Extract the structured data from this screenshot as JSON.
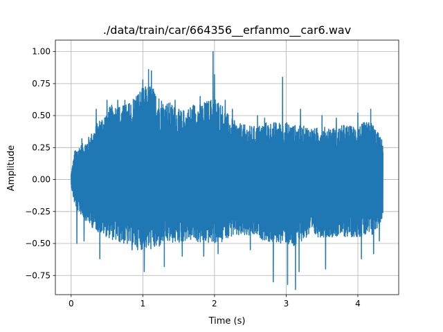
{
  "chart_data": {
    "type": "line",
    "title": "./data/train/car/664356__erfanmo__car6.wav",
    "xlabel": "Time (s)",
    "ylabel": "Amplitude",
    "xlim": [
      -0.22,
      4.57
    ],
    "ylim": [
      -0.9,
      1.09
    ],
    "xticks": [
      0,
      1,
      2,
      3,
      4
    ],
    "xtick_labels": [
      "0",
      "1",
      "2",
      "3",
      "4"
    ],
    "yticks": [
      -0.75,
      -0.5,
      -0.25,
      0.0,
      0.25,
      0.5,
      0.75,
      1.0
    ],
    "ytick_labels": [
      "−0.75",
      "−0.50",
      "−0.25",
      "0.00",
      "0.25",
      "0.50",
      "0.75",
      "1.00"
    ],
    "grid": true,
    "line_color": "#1f77b4",
    "series": [
      {
        "signal_duration_s": 4.35,
        "peak_max": 1.0,
        "peak_max_time_s": 1.98,
        "peak_min": -0.86,
        "peak_min_time_s": 3.13,
        "upper_envelope": [
          [
            0.0,
            0.05
          ],
          [
            0.05,
            0.22
          ],
          [
            0.1,
            0.26
          ],
          [
            0.2,
            0.3
          ],
          [
            0.3,
            0.38
          ],
          [
            0.4,
            0.48
          ],
          [
            0.5,
            0.55
          ],
          [
            0.6,
            0.6
          ],
          [
            0.7,
            0.58
          ],
          [
            0.8,
            0.6
          ],
          [
            0.9,
            0.68
          ],
          [
            1.0,
            0.72
          ],
          [
            1.1,
            0.75
          ],
          [
            1.2,
            0.68
          ],
          [
            1.3,
            0.62
          ],
          [
            1.4,
            0.6
          ],
          [
            1.5,
            0.55
          ],
          [
            1.6,
            0.55
          ],
          [
            1.7,
            0.6
          ],
          [
            1.8,
            0.6
          ],
          [
            1.9,
            0.62
          ],
          [
            2.0,
            0.65
          ],
          [
            2.1,
            0.6
          ],
          [
            2.2,
            0.5
          ],
          [
            2.3,
            0.45
          ],
          [
            2.4,
            0.43
          ],
          [
            2.5,
            0.42
          ],
          [
            2.6,
            0.42
          ],
          [
            2.7,
            0.45
          ],
          [
            2.8,
            0.45
          ],
          [
            2.9,
            0.45
          ],
          [
            3.0,
            0.45
          ],
          [
            3.1,
            0.43
          ],
          [
            3.2,
            0.42
          ],
          [
            3.3,
            0.42
          ],
          [
            3.4,
            0.4
          ],
          [
            3.5,
            0.42
          ],
          [
            3.6,
            0.42
          ],
          [
            3.7,
            0.4
          ],
          [
            3.8,
            0.43
          ],
          [
            3.9,
            0.42
          ],
          [
            4.0,
            0.42
          ],
          [
            4.1,
            0.45
          ],
          [
            4.2,
            0.45
          ],
          [
            4.3,
            0.35
          ],
          [
            4.35,
            0.3
          ]
        ],
        "lower_envelope": [
          [
            0.0,
            -0.05
          ],
          [
            0.05,
            -0.2
          ],
          [
            0.1,
            -0.25
          ],
          [
            0.2,
            -0.32
          ],
          [
            0.3,
            -0.38
          ],
          [
            0.4,
            -0.42
          ],
          [
            0.5,
            -0.45
          ],
          [
            0.6,
            -0.48
          ],
          [
            0.7,
            -0.5
          ],
          [
            0.8,
            -0.52
          ],
          [
            0.9,
            -0.55
          ],
          [
            1.0,
            -0.55
          ],
          [
            1.1,
            -0.55
          ],
          [
            1.2,
            -0.55
          ],
          [
            1.3,
            -0.5
          ],
          [
            1.4,
            -0.5
          ],
          [
            1.5,
            -0.5
          ],
          [
            1.6,
            -0.48
          ],
          [
            1.7,
            -0.48
          ],
          [
            1.8,
            -0.5
          ],
          [
            1.9,
            -0.5
          ],
          [
            2.0,
            -0.5
          ],
          [
            2.1,
            -0.5
          ],
          [
            2.2,
            -0.45
          ],
          [
            2.3,
            -0.45
          ],
          [
            2.4,
            -0.45
          ],
          [
            2.5,
            -0.45
          ],
          [
            2.6,
            -0.45
          ],
          [
            2.7,
            -0.48
          ],
          [
            2.8,
            -0.5
          ],
          [
            2.9,
            -0.5
          ],
          [
            3.0,
            -0.5
          ],
          [
            3.1,
            -0.55
          ],
          [
            3.2,
            -0.5
          ],
          [
            3.3,
            -0.45
          ],
          [
            3.4,
            -0.45
          ],
          [
            3.5,
            -0.45
          ],
          [
            3.6,
            -0.45
          ],
          [
            3.7,
            -0.45
          ],
          [
            3.8,
            -0.45
          ],
          [
            3.9,
            -0.45
          ],
          [
            4.0,
            -0.45
          ],
          [
            4.1,
            -0.45
          ],
          [
            4.2,
            -0.45
          ],
          [
            4.3,
            -0.35
          ],
          [
            4.35,
            -0.3
          ]
        ],
        "spikes": [
          [
            0.05,
            0.22
          ],
          [
            0.08,
            -0.5
          ],
          [
            0.15,
            0.32
          ],
          [
            0.18,
            -0.48
          ],
          [
            0.35,
            0.55
          ],
          [
            0.4,
            -0.62
          ],
          [
            0.5,
            0.62
          ],
          [
            0.65,
            0.62
          ],
          [
            0.75,
            0.62
          ],
          [
            0.85,
            -0.55
          ],
          [
            1.0,
            0.78
          ],
          [
            1.02,
            -0.72
          ],
          [
            1.08,
            0.86
          ],
          [
            1.12,
            0.85
          ],
          [
            1.18,
            0.65
          ],
          [
            1.3,
            -0.68
          ],
          [
            1.45,
            0.62
          ],
          [
            1.55,
            -0.6
          ],
          [
            1.8,
            0.65
          ],
          [
            1.85,
            -0.6
          ],
          [
            1.98,
            1.0
          ],
          [
            2.0,
            0.82
          ],
          [
            2.05,
            -0.58
          ],
          [
            2.15,
            0.62
          ],
          [
            2.25,
            0.55
          ],
          [
            2.5,
            -0.55
          ],
          [
            2.6,
            0.5
          ],
          [
            2.7,
            0.48
          ],
          [
            2.82,
            -0.8
          ],
          [
            2.95,
            0.8
          ],
          [
            3.02,
            -0.82
          ],
          [
            3.13,
            -0.86
          ],
          [
            3.18,
            -0.72
          ],
          [
            3.2,
            0.55
          ],
          [
            3.5,
            0.5
          ],
          [
            3.55,
            -0.7
          ],
          [
            3.7,
            0.48
          ],
          [
            4.0,
            0.52
          ],
          [
            4.05,
            -0.62
          ],
          [
            4.18,
            0.55
          ],
          [
            4.22,
            -0.58
          ],
          [
            4.3,
            -0.48
          ]
        ]
      }
    ]
  }
}
